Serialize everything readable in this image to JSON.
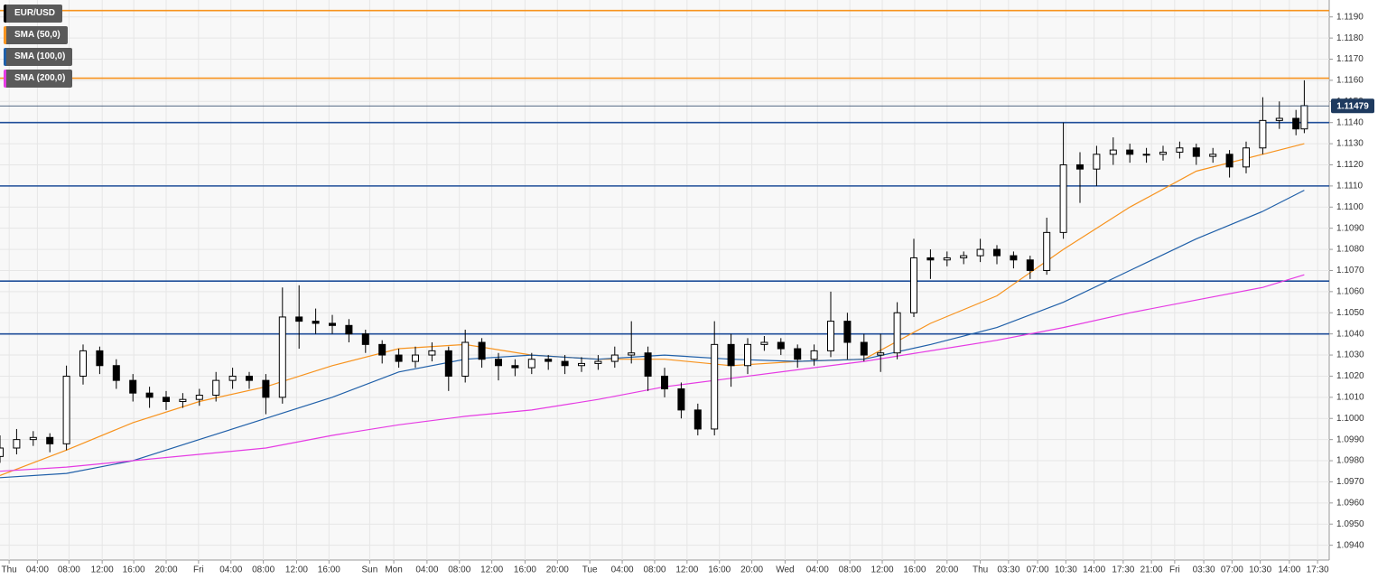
{
  "chart_data": {
    "type": "candlestick",
    "xlim": [
      0,
      160
    ],
    "ylim": [
      1.0933,
      1.1198
    ],
    "grid": true,
    "xticks": [
      {
        "value": 1.1,
        "label": "Thu"
      },
      {
        "value": 4.5,
        "label": "04:00"
      },
      {
        "value": 8.3,
        "label": "08:00"
      },
      {
        "value": 12.3,
        "label": "12:00"
      },
      {
        "value": 16.1,
        "label": "16:00"
      },
      {
        "value": 20,
        "label": "20:00"
      },
      {
        "value": 23.9,
        "label": "Fri"
      },
      {
        "value": 27.8,
        "label": "04:00"
      },
      {
        "value": 31.7,
        "label": "08:00"
      },
      {
        "value": 35.7,
        "label": "12:00"
      },
      {
        "value": 39.6,
        "label": "16:00"
      },
      {
        "value": 44.5,
        "label": "Sun"
      },
      {
        "value": 47.4,
        "label": "Mon"
      },
      {
        "value": 51.4,
        "label": "04:00"
      },
      {
        "value": 55.3,
        "label": "08:00"
      },
      {
        "value": 59.2,
        "label": "12:00"
      },
      {
        "value": 63.2,
        "label": "16:00"
      },
      {
        "value": 67.1,
        "label": "20:00"
      },
      {
        "value": 71,
        "label": "Tue"
      },
      {
        "value": 74.9,
        "label": "04:00"
      },
      {
        "value": 78.8,
        "label": "08:00"
      },
      {
        "value": 82.7,
        "label": "12:00"
      },
      {
        "value": 86.6,
        "label": "16:00"
      },
      {
        "value": 90.5,
        "label": "20:00"
      },
      {
        "value": 94.5,
        "label": "Wed"
      },
      {
        "value": 98.4,
        "label": "04:00"
      },
      {
        "value": 102.3,
        "label": "08:00"
      },
      {
        "value": 106.2,
        "label": "12:00"
      },
      {
        "value": 110.1,
        "label": "16:00"
      },
      {
        "value": 114,
        "label": "20:00"
      },
      {
        "value": 118,
        "label": "Thu"
      },
      {
        "value": 121.4,
        "label": "03:30"
      },
      {
        "value": 124.9,
        "label": "07:00"
      },
      {
        "value": 128.3,
        "label": "10:30"
      },
      {
        "value": 131.7,
        "label": "14:00"
      },
      {
        "value": 135.2,
        "label": "17:30"
      },
      {
        "value": 138.6,
        "label": "21:00"
      },
      {
        "value": 141.4,
        "label": "Fri"
      },
      {
        "value": 144.9,
        "label": "03:30"
      },
      {
        "value": 148.3,
        "label": "07:00"
      },
      {
        "value": 151.7,
        "label": "10:30"
      },
      {
        "value": 155.2,
        "label": "14:00"
      },
      {
        "value": 158.6,
        "label": "17:30"
      }
    ],
    "yticks": [
      {
        "value": 1.094,
        "label": "1.0940"
      },
      {
        "value": 1.095,
        "label": "1.0950"
      },
      {
        "value": 1.096,
        "label": "1.0960"
      },
      {
        "value": 1.097,
        "label": "1.0970"
      },
      {
        "value": 1.098,
        "label": "1.0980"
      },
      {
        "value": 1.099,
        "label": "1.0990"
      },
      {
        "value": 1.1,
        "label": "1.1000"
      },
      {
        "value": 1.101,
        "label": "1.1010"
      },
      {
        "value": 1.102,
        "label": "1.1020"
      },
      {
        "value": 1.103,
        "label": "1.1030"
      },
      {
        "value": 1.104,
        "label": "1.1040"
      },
      {
        "value": 1.105,
        "label": "1.1050"
      },
      {
        "value": 1.106,
        "label": "1.1060"
      },
      {
        "value": 1.107,
        "label": "1.1070"
      },
      {
        "value": 1.108,
        "label": "1.1080"
      },
      {
        "value": 1.109,
        "label": "1.1090"
      },
      {
        "value": 1.11,
        "label": "1.1100"
      },
      {
        "value": 1.111,
        "label": "1.1110"
      },
      {
        "value": 1.112,
        "label": "1.1120"
      },
      {
        "value": 1.113,
        "label": "1.1130"
      },
      {
        "value": 1.114,
        "label": "1.1140"
      },
      {
        "value": 1.115,
        "label": "1.1150"
      },
      {
        "value": 1.116,
        "label": "1.1160"
      },
      {
        "value": 1.117,
        "label": "1.1170"
      },
      {
        "value": 1.118,
        "label": "1.1180"
      },
      {
        "value": 1.119,
        "label": "1.1190"
      }
    ],
    "hlines": [
      {
        "value": 1.1193,
        "color": "#f7931e"
      },
      {
        "value": 1.1161,
        "color": "#f7931e"
      },
      {
        "value": 1.114,
        "color": "#1f4e99"
      },
      {
        "value": 1.111,
        "color": "#1f4e99"
      },
      {
        "value": 1.1065,
        "color": "#1f4e99"
      },
      {
        "value": 1.104,
        "color": "#1f4e99"
      }
    ],
    "last_price": 1.11479,
    "series": [
      {
        "name": "EUR/USD",
        "type": "candlestick",
        "color": "#000000",
        "x": [
          0,
          2,
          4,
          6,
          8,
          10,
          12,
          14,
          16,
          18,
          20,
          22,
          24,
          26,
          28,
          30,
          32,
          34,
          36,
          38,
          40,
          42,
          44,
          46,
          48,
          50,
          52,
          54,
          56,
          58,
          60,
          62,
          64,
          66,
          68,
          70,
          72,
          74,
          76,
          78,
          80,
          82,
          84,
          86,
          88,
          90,
          92,
          94,
          96,
          98,
          100,
          102,
          104,
          106,
          108,
          110,
          112,
          114,
          116,
          118,
          120,
          122,
          124,
          126,
          128,
          130,
          132,
          134,
          136,
          138,
          140,
          142,
          144,
          146,
          148,
          150,
          152,
          154,
          156,
          157
        ],
        "open": [
          1.0982,
          1.0986,
          1.099,
          1.0991,
          1.0988,
          1.102,
          1.1032,
          1.1025,
          1.1018,
          1.1012,
          1.101,
          1.1008,
          1.1009,
          1.1011,
          1.1018,
          1.102,
          1.1018,
          1.101,
          1.1048,
          1.1046,
          1.1045,
          1.1044,
          1.104,
          1.1035,
          1.103,
          1.1027,
          1.103,
          1.1032,
          1.102,
          1.1036,
          1.1028,
          1.1025,
          1.1024,
          1.1028,
          1.1027,
          1.1025,
          1.1026,
          1.1027,
          1.103,
          1.1031,
          1.102,
          1.1014,
          1.1004,
          1.0995,
          1.1035,
          1.1025,
          1.1035,
          1.1036,
          1.1033,
          1.1028,
          1.1032,
          1.1046,
          1.1036,
          1.103,
          1.1031,
          1.105,
          1.1076,
          1.1075,
          1.1076,
          1.1077,
          1.108,
          1.1077,
          1.1075,
          1.107,
          1.1088,
          1.112,
          1.1118,
          1.1125,
          1.1127,
          1.1125,
          1.1125,
          1.1126,
          1.1128,
          1.1124,
          1.1125,
          1.1119,
          1.1128,
          1.1141,
          1.1142,
          1.1137
        ],
        "high": [
          1.0992,
          1.0995,
          1.0994,
          1.0993,
          1.1025,
          1.1035,
          1.1034,
          1.1028,
          1.1021,
          1.1015,
          1.1013,
          1.1012,
          1.1014,
          1.1022,
          1.1024,
          1.1022,
          1.1021,
          1.1062,
          1.1063,
          1.1052,
          1.1049,
          1.1047,
          1.1042,
          1.1037,
          1.1033,
          1.1034,
          1.1036,
          1.1034,
          1.1042,
          1.1038,
          1.1031,
          1.1028,
          1.1031,
          1.103,
          1.103,
          1.1029,
          1.103,
          1.1034,
          1.1046,
          1.1034,
          1.1024,
          1.1017,
          1.1007,
          1.1046,
          1.104,
          1.1038,
          1.1039,
          1.1038,
          1.1035,
          1.1035,
          1.106,
          1.105,
          1.104,
          1.104,
          1.1055,
          1.1085,
          1.108,
          1.1079,
          1.1079,
          1.1085,
          1.1082,
          1.1079,
          1.1077,
          1.1095,
          1.114,
          1.1126,
          1.1129,
          1.1133,
          1.113,
          1.1128,
          1.1129,
          1.1131,
          1.113,
          1.1128,
          1.1127,
          1.1131,
          1.1152,
          1.115,
          1.1146,
          1.116
        ],
        "low": [
          1.0979,
          1.0983,
          1.0987,
          1.0984,
          1.0985,
          1.1016,
          1.1021,
          1.1014,
          1.1008,
          1.1005,
          1.1004,
          1.1005,
          1.1006,
          1.1008,
          1.1014,
          1.1014,
          1.1002,
          1.1007,
          1.1033,
          1.104,
          1.104,
          1.1036,
          1.1031,
          1.1026,
          1.1024,
          1.1024,
          1.1027,
          1.1013,
          1.1017,
          1.1024,
          1.1018,
          1.102,
          1.1021,
          1.1023,
          1.1021,
          1.1022,
          1.1023,
          1.1024,
          1.1026,
          1.1013,
          1.101,
          1.1,
          1.0992,
          1.0992,
          1.1015,
          1.1021,
          1.1032,
          1.103,
          1.1024,
          1.1025,
          1.1029,
          1.1028,
          1.1027,
          1.1022,
          1.1028,
          1.1048,
          1.1066,
          1.1072,
          1.1073,
          1.1074,
          1.1073,
          1.1071,
          1.1066,
          1.1068,
          1.1085,
          1.1102,
          1.111,
          1.112,
          1.1121,
          1.1121,
          1.1122,
          1.1123,
          1.112,
          1.1121,
          1.1114,
          1.1116,
          1.1125,
          1.1137,
          1.1134,
          1.1135
        ],
        "close": [
          1.0986,
          1.099,
          1.0991,
          1.0988,
          1.102,
          1.1032,
          1.1025,
          1.1018,
          1.1012,
          1.101,
          1.1008,
          1.1009,
          1.1011,
          1.1018,
          1.102,
          1.1018,
          1.101,
          1.1048,
          1.1046,
          1.1045,
          1.1044,
          1.104,
          1.1035,
          1.103,
          1.1027,
          1.103,
          1.1032,
          1.102,
          1.1036,
          1.1028,
          1.1025,
          1.1024,
          1.1028,
          1.1027,
          1.1025,
          1.1026,
          1.1027,
          1.103,
          1.1031,
          1.102,
          1.1014,
          1.1004,
          1.0995,
          1.1035,
          1.1025,
          1.1035,
          1.1036,
          1.1033,
          1.1028,
          1.1032,
          1.1046,
          1.1036,
          1.103,
          1.1031,
          1.105,
          1.1076,
          1.1075,
          1.1076,
          1.1077,
          1.108,
          1.1077,
          1.1075,
          1.107,
          1.1088,
          1.112,
          1.1118,
          1.1125,
          1.1127,
          1.1125,
          1.1125,
          1.1126,
          1.1128,
          1.1124,
          1.1125,
          1.1119,
          1.1128,
          1.1141,
          1.1142,
          1.1137,
          1.1148
        ]
      },
      {
        "name": "SMA (50,0)",
        "type": "line",
        "color": "#f7931e",
        "x": [
          0,
          8,
          16,
          24,
          32,
          40,
          48,
          56,
          64,
          72,
          80,
          88,
          96,
          104,
          112,
          120,
          128,
          136,
          144,
          152,
          157
        ],
        "values": [
          1.0973,
          1.0985,
          1.0998,
          1.1008,
          1.1015,
          1.1025,
          1.1033,
          1.1035,
          1.103,
          1.1028,
          1.1028,
          1.1025,
          1.1027,
          1.1028,
          1.1045,
          1.1058,
          1.108,
          1.11,
          1.1117,
          1.1125,
          1.113
        ]
      },
      {
        "name": "SMA (100,0)",
        "type": "line",
        "color": "#1f5fa8",
        "x": [
          0,
          8,
          16,
          24,
          32,
          40,
          48,
          56,
          64,
          72,
          80,
          88,
          96,
          104,
          112,
          120,
          128,
          136,
          144,
          152,
          157
        ],
        "values": [
          1.0972,
          1.0974,
          1.098,
          1.099,
          1.1,
          1.101,
          1.1022,
          1.1028,
          1.103,
          1.1028,
          1.103,
          1.1028,
          1.1027,
          1.1028,
          1.1035,
          1.1043,
          1.1055,
          1.107,
          1.1085,
          1.1098,
          1.1108
        ]
      },
      {
        "name": "SMA (200,0)",
        "type": "line",
        "color": "#e53be3",
        "x": [
          0,
          8,
          16,
          24,
          32,
          40,
          48,
          56,
          64,
          72,
          80,
          88,
          96,
          104,
          112,
          120,
          128,
          136,
          144,
          152,
          157
        ],
        "values": [
          1.0975,
          1.0977,
          1.098,
          1.0983,
          1.0986,
          1.0992,
          1.0997,
          1.1001,
          1.1004,
          1.1009,
          1.1015,
          1.1019,
          1.1023,
          1.1027,
          1.1032,
          1.1037,
          1.1043,
          1.105,
          1.1056,
          1.1062,
          1.1068
        ]
      }
    ]
  }
}
